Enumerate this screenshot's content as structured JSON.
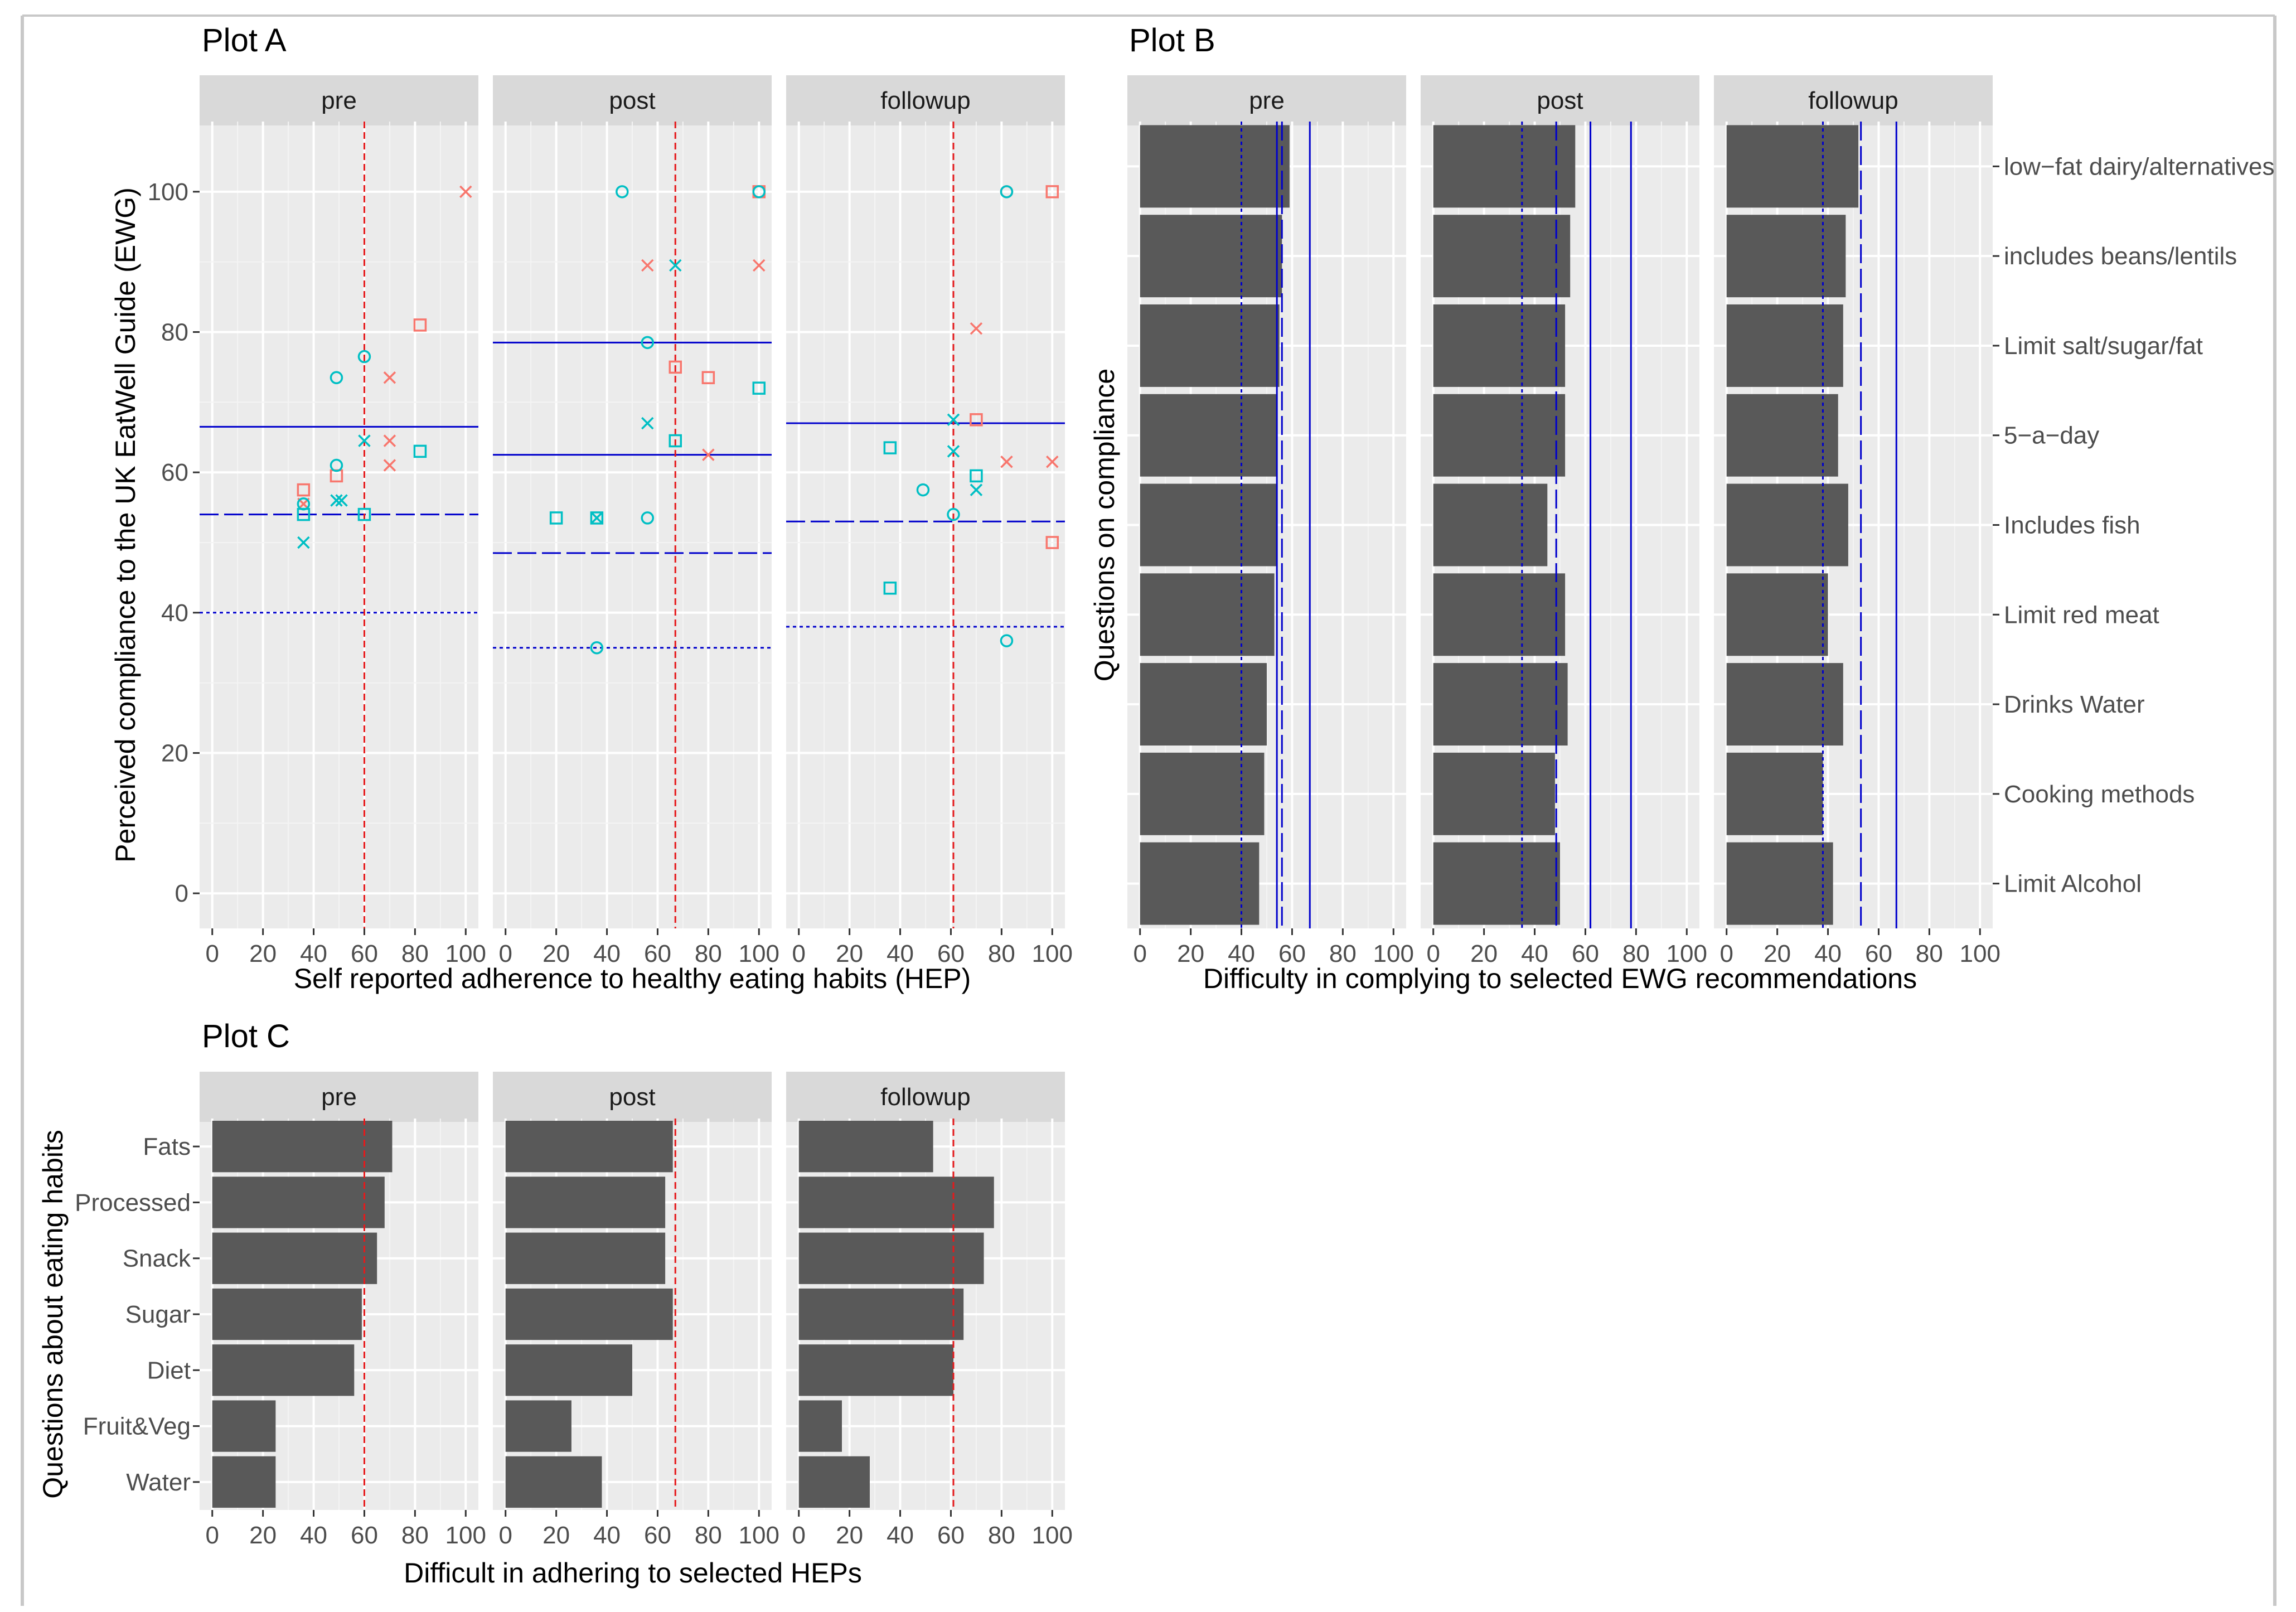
{
  "colors": {
    "panel_bg": "#ebebeb",
    "grid_major": "#ffffff",
    "grid_minor": "#f4f4f4",
    "strip_bg": "#d9d9d9",
    "bar": "#595959",
    "series_a": "#f8766d",
    "series_b": "#00bfc4",
    "ref_line_red": "#e41a1c",
    "ref_line_blue": "#0000cc",
    "frame": "#d0d0d0"
  },
  "chart_data": [
    {
      "id": "plot-a",
      "type": "scatter",
      "title": "Plot A",
      "xlabel": "Self reported adherence to healthy eating habits (HEP)",
      "ylabel": "Perceived compliance to the UK EatWell Guide (EWG)",
      "xlim": [
        -5,
        105
      ],
      "ylim": [
        -5,
        110
      ],
      "x_ticks": [
        "0",
        "20",
        "40",
        "60",
        "80",
        "100"
      ],
      "y_ticks": [
        "0",
        "20",
        "40",
        "60",
        "80",
        "100"
      ],
      "facets": [
        "pre",
        "post",
        "followup"
      ],
      "panels": [
        {
          "facet": "pre",
          "vline": 60,
          "hlines": [
            {
              "y": 66.5,
              "style": "solid"
            },
            {
              "y": 54,
              "style": "dashed"
            },
            {
              "y": 40,
              "style": "dotted"
            }
          ],
          "points": [
            {
              "x": 100,
              "y": 100,
              "shape": "x",
              "group": "a"
            },
            {
              "x": 82,
              "y": 81,
              "shape": "square",
              "group": "a"
            },
            {
              "x": 70,
              "y": 73.5,
              "shape": "x",
              "group": "a"
            },
            {
              "x": 70,
              "y": 64.5,
              "shape": "x",
              "group": "a"
            },
            {
              "x": 70,
              "y": 61,
              "shape": "x",
              "group": "a"
            },
            {
              "x": 49,
              "y": 59.5,
              "shape": "square",
              "group": "a"
            },
            {
              "x": 36,
              "y": 57.5,
              "shape": "square",
              "group": "a"
            },
            {
              "x": 36,
              "y": 55.5,
              "shape": "x",
              "group": "a"
            },
            {
              "x": 60,
              "y": 76.5,
              "shape": "circle",
              "group": "b"
            },
            {
              "x": 49,
              "y": 73.5,
              "shape": "circle",
              "group": "b"
            },
            {
              "x": 60,
              "y": 64.5,
              "shape": "x",
              "group": "b"
            },
            {
              "x": 82,
              "y": 63,
              "shape": "square",
              "group": "b"
            },
            {
              "x": 49,
              "y": 61,
              "shape": "circle",
              "group": "b"
            },
            {
              "x": 49,
              "y": 56,
              "shape": "x",
              "group": "b"
            },
            {
              "x": 51,
              "y": 56,
              "shape": "x",
              "group": "b"
            },
            {
              "x": 36,
              "y": 55.5,
              "shape": "circle",
              "group": "b"
            },
            {
              "x": 36,
              "y": 54,
              "shape": "square",
              "group": "b"
            },
            {
              "x": 60,
              "y": 54,
              "shape": "square",
              "group": "b"
            },
            {
              "x": 36,
              "y": 50,
              "shape": "x",
              "group": "b"
            }
          ]
        },
        {
          "facet": "post",
          "vline": 67,
          "hlines": [
            {
              "y": 78.5,
              "style": "solid"
            },
            {
              "y": 62.5,
              "style": "solid"
            },
            {
              "y": 48.5,
              "style": "dashed"
            },
            {
              "y": 35,
              "style": "dotted"
            }
          ],
          "points": [
            {
              "x": 100,
              "y": 100,
              "shape": "square",
              "group": "a"
            },
            {
              "x": 56,
              "y": 89.5,
              "shape": "x",
              "group": "a"
            },
            {
              "x": 100,
              "y": 89.5,
              "shape": "x",
              "group": "a"
            },
            {
              "x": 67,
              "y": 75,
              "shape": "square",
              "group": "a"
            },
            {
              "x": 80,
              "y": 73.5,
              "shape": "square",
              "group": "a"
            },
            {
              "x": 80,
              "y": 62.5,
              "shape": "x",
              "group": "a"
            },
            {
              "x": 46,
              "y": 100,
              "shape": "circle",
              "group": "b"
            },
            {
              "x": 100,
              "y": 100,
              "shape": "circle",
              "group": "b"
            },
            {
              "x": 67,
              "y": 89.5,
              "shape": "x",
              "group": "b"
            },
            {
              "x": 56,
              "y": 78.5,
              "shape": "circle",
              "group": "b"
            },
            {
              "x": 100,
              "y": 72,
              "shape": "square",
              "group": "b"
            },
            {
              "x": 56,
              "y": 67,
              "shape": "x",
              "group": "b"
            },
            {
              "x": 67,
              "y": 64.5,
              "shape": "square",
              "group": "b"
            },
            {
              "x": 20,
              "y": 53.5,
              "shape": "square",
              "group": "b"
            },
            {
              "x": 36,
              "y": 53.5,
              "shape": "square",
              "group": "b"
            },
            {
              "x": 36,
              "y": 53.5,
              "shape": "x",
              "group": "b"
            },
            {
              "x": 56,
              "y": 53.5,
              "shape": "circle",
              "group": "b"
            },
            {
              "x": 36,
              "y": 35,
              "shape": "circle",
              "group": "b"
            }
          ]
        },
        {
          "facet": "followup",
          "vline": 61,
          "hlines": [
            {
              "y": 67,
              "style": "solid"
            },
            {
              "y": 53,
              "style": "dashed"
            },
            {
              "y": 38,
              "style": "dotted"
            }
          ],
          "points": [
            {
              "x": 100,
              "y": 100,
              "shape": "square",
              "group": "a"
            },
            {
              "x": 82,
              "y": 100,
              "shape": "circle",
              "group": "a"
            },
            {
              "x": 70,
              "y": 80.5,
              "shape": "x",
              "group": "a"
            },
            {
              "x": 70,
              "y": 67.5,
              "shape": "square",
              "group": "a"
            },
            {
              "x": 82,
              "y": 61.5,
              "shape": "x",
              "group": "a"
            },
            {
              "x": 100,
              "y": 61.5,
              "shape": "x",
              "group": "a"
            },
            {
              "x": 100,
              "y": 50,
              "shape": "square",
              "group": "a"
            },
            {
              "x": 82,
              "y": 100,
              "shape": "circle",
              "group": "b"
            },
            {
              "x": 61,
              "y": 67.5,
              "shape": "x",
              "group": "b"
            },
            {
              "x": 36,
              "y": 63.5,
              "shape": "square",
              "group": "b"
            },
            {
              "x": 61,
              "y": 63,
              "shape": "x",
              "group": "b"
            },
            {
              "x": 70,
              "y": 59.5,
              "shape": "square",
              "group": "b"
            },
            {
              "x": 49,
              "y": 57.5,
              "shape": "circle",
              "group": "b"
            },
            {
              "x": 70,
              "y": 57.5,
              "shape": "x",
              "group": "b"
            },
            {
              "x": 61,
              "y": 54,
              "shape": "circle",
              "group": "b"
            },
            {
              "x": 36,
              "y": 43.5,
              "shape": "square",
              "group": "b"
            },
            {
              "x": 82,
              "y": 36,
              "shape": "circle",
              "group": "b"
            }
          ]
        }
      ]
    },
    {
      "id": "plot-b",
      "type": "bar",
      "orientation": "horizontal",
      "title": "Plot B",
      "xlabel": "Difficulty in complying to selected EWG recommendations",
      "ylabel": "Questions on compliance",
      "xlim": [
        -5,
        105
      ],
      "x_ticks": [
        "0",
        "20",
        "40",
        "60",
        "80",
        "100"
      ],
      "facets": [
        "pre",
        "post",
        "followup"
      ],
      "category_position": "right",
      "categories": [
        "low-fat dairy/alternatives",
        "includes beans/lentils",
        "Limit salt/sugar/fat",
        "5-a-day",
        "Includes fish",
        "Limit red meat",
        "Drinks Water",
        "Cooking methods",
        "Limit Alcohol"
      ],
      "category_labels": [
        "low−fat dairy/alternatives",
        "includes beans/lentils",
        "Limit salt/sugar/fat",
        "5−a−day",
        "Includes fish",
        "Limit red meat",
        "Drinks Water",
        "Cooking methods",
        "Limit Alcohol"
      ],
      "panels": [
        {
          "facet": "pre",
          "values": [
            59,
            56,
            55,
            54,
            54,
            53,
            50,
            49,
            47
          ],
          "vlines": [
            {
              "x": 67,
              "style": "solid"
            },
            {
              "x": 54,
              "style": "solid"
            },
            {
              "x": 56,
              "style": "dashed"
            },
            {
              "x": 40,
              "style": "dotted"
            }
          ]
        },
        {
          "facet": "post",
          "values": [
            56,
            54,
            52,
            52,
            45,
            52,
            53,
            48,
            50
          ],
          "vlines": [
            {
              "x": 78,
              "style": "solid"
            },
            {
              "x": 62,
              "style": "solid"
            },
            {
              "x": 48.5,
              "style": "dashed"
            },
            {
              "x": 35,
              "style": "dotted"
            }
          ]
        },
        {
          "facet": "followup",
          "values": [
            52,
            47,
            46,
            44,
            48,
            40,
            46,
            38,
            42
          ],
          "vlines": [
            {
              "x": 67,
              "style": "solid"
            },
            {
              "x": 53,
              "style": "dashed"
            },
            {
              "x": 38,
              "style": "dotted"
            }
          ]
        }
      ]
    },
    {
      "id": "plot-c",
      "type": "bar",
      "orientation": "horizontal",
      "title": "Plot C",
      "xlabel": "Difficult in adhering to selected HEPs",
      "ylabel": "Questions about eating habits",
      "xlim": [
        -5,
        105
      ],
      "x_ticks": [
        "0",
        "20",
        "40",
        "60",
        "80",
        "100"
      ],
      "facets": [
        "pre",
        "post",
        "followup"
      ],
      "category_position": "left",
      "categories": [
        "Fats",
        "Processed",
        "Snack",
        "Sugar",
        "Diet",
        "Fruit&Veg",
        "Water"
      ],
      "panels": [
        {
          "facet": "pre",
          "values": [
            71,
            68,
            65,
            59,
            56,
            25,
            25
          ],
          "vline": 60
        },
        {
          "facet": "post",
          "values": [
            66,
            63,
            63,
            66,
            50,
            26,
            38
          ],
          "vline": 67
        },
        {
          "facet": "followup",
          "values": [
            53,
            77,
            73,
            65,
            61,
            17,
            28
          ],
          "vline": 61
        }
      ]
    }
  ]
}
